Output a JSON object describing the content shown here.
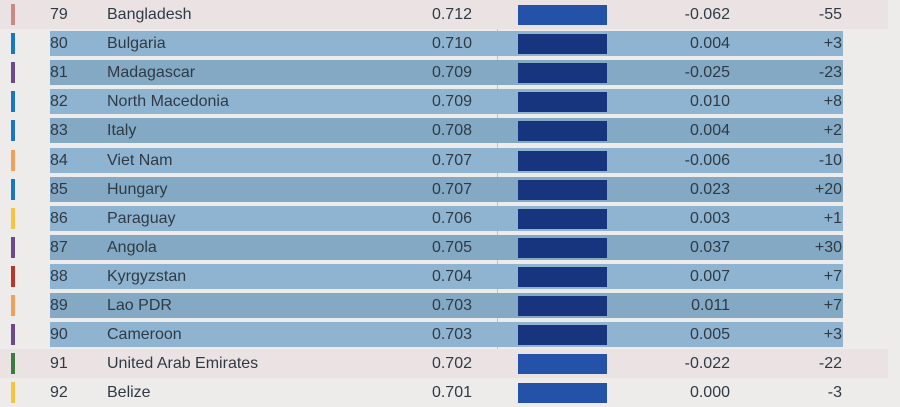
{
  "rows": [
    {
      "rank": "79",
      "country": "Bangladesh",
      "score": "0.712",
      "change": "-0.062",
      "rank_change": "-55",
      "accent": "#c98a84",
      "state": "plain"
    },
    {
      "rank": "80",
      "country": "Bulgaria",
      "score": "0.710",
      "change": "0.004",
      "rank_change": "+3",
      "accent": "#1b74c4",
      "state": "selected"
    },
    {
      "rank": "81",
      "country": "Madagascar",
      "score": "0.709",
      "change": "-0.025",
      "rank_change": "-23",
      "accent": "#6b4a8c",
      "state": "selected"
    },
    {
      "rank": "82",
      "country": "North Macedonia",
      "score": "0.709",
      "change": "0.010",
      "rank_change": "+8",
      "accent": "#1b74c4",
      "state": "selected"
    },
    {
      "rank": "83",
      "country": "Italy",
      "score": "0.708",
      "change": "0.004",
      "rank_change": "+2",
      "accent": "#1b74c4",
      "state": "selected"
    },
    {
      "rank": "84",
      "country": "Viet Nam",
      "score": "0.707",
      "change": "-0.006",
      "rank_change": "-10",
      "accent": "#f0a05a",
      "state": "selected"
    },
    {
      "rank": "85",
      "country": "Hungary",
      "score": "0.707",
      "change": "0.023",
      "rank_change": "+20",
      "accent": "#1b74c4",
      "state": "selected"
    },
    {
      "rank": "86",
      "country": "Paraguay",
      "score": "0.706",
      "change": "0.003",
      "rank_change": "+1",
      "accent": "#f5c542",
      "state": "selected"
    },
    {
      "rank": "87",
      "country": "Angola",
      "score": "0.705",
      "change": "0.037",
      "rank_change": "+30",
      "accent": "#6b4a8c",
      "state": "selected"
    },
    {
      "rank": "88",
      "country": "Kyrgyzstan",
      "score": "0.704",
      "change": "0.007",
      "rank_change": "+7",
      "accent": "#b8362c",
      "state": "selected"
    },
    {
      "rank": "89",
      "country": "Lao PDR",
      "score": "0.703",
      "change": "0.011",
      "rank_change": "+7",
      "accent": "#f0a05a",
      "state": "selected"
    },
    {
      "rank": "90",
      "country": "Cameroon",
      "score": "0.703",
      "change": "0.005",
      "rank_change": "+3",
      "accent": "#6b4a8c",
      "state": "selected"
    },
    {
      "rank": "91",
      "country": "United Arab Emirates",
      "score": "0.702",
      "change": "-0.022",
      "rank_change": "-22",
      "accent": "#3d7a3d",
      "state": "plain"
    },
    {
      "rank": "92",
      "country": "Belize",
      "score": "0.701",
      "change": "0.000",
      "rank_change": "-3",
      "accent": "#f5c542",
      "state": "plain"
    }
  ]
}
